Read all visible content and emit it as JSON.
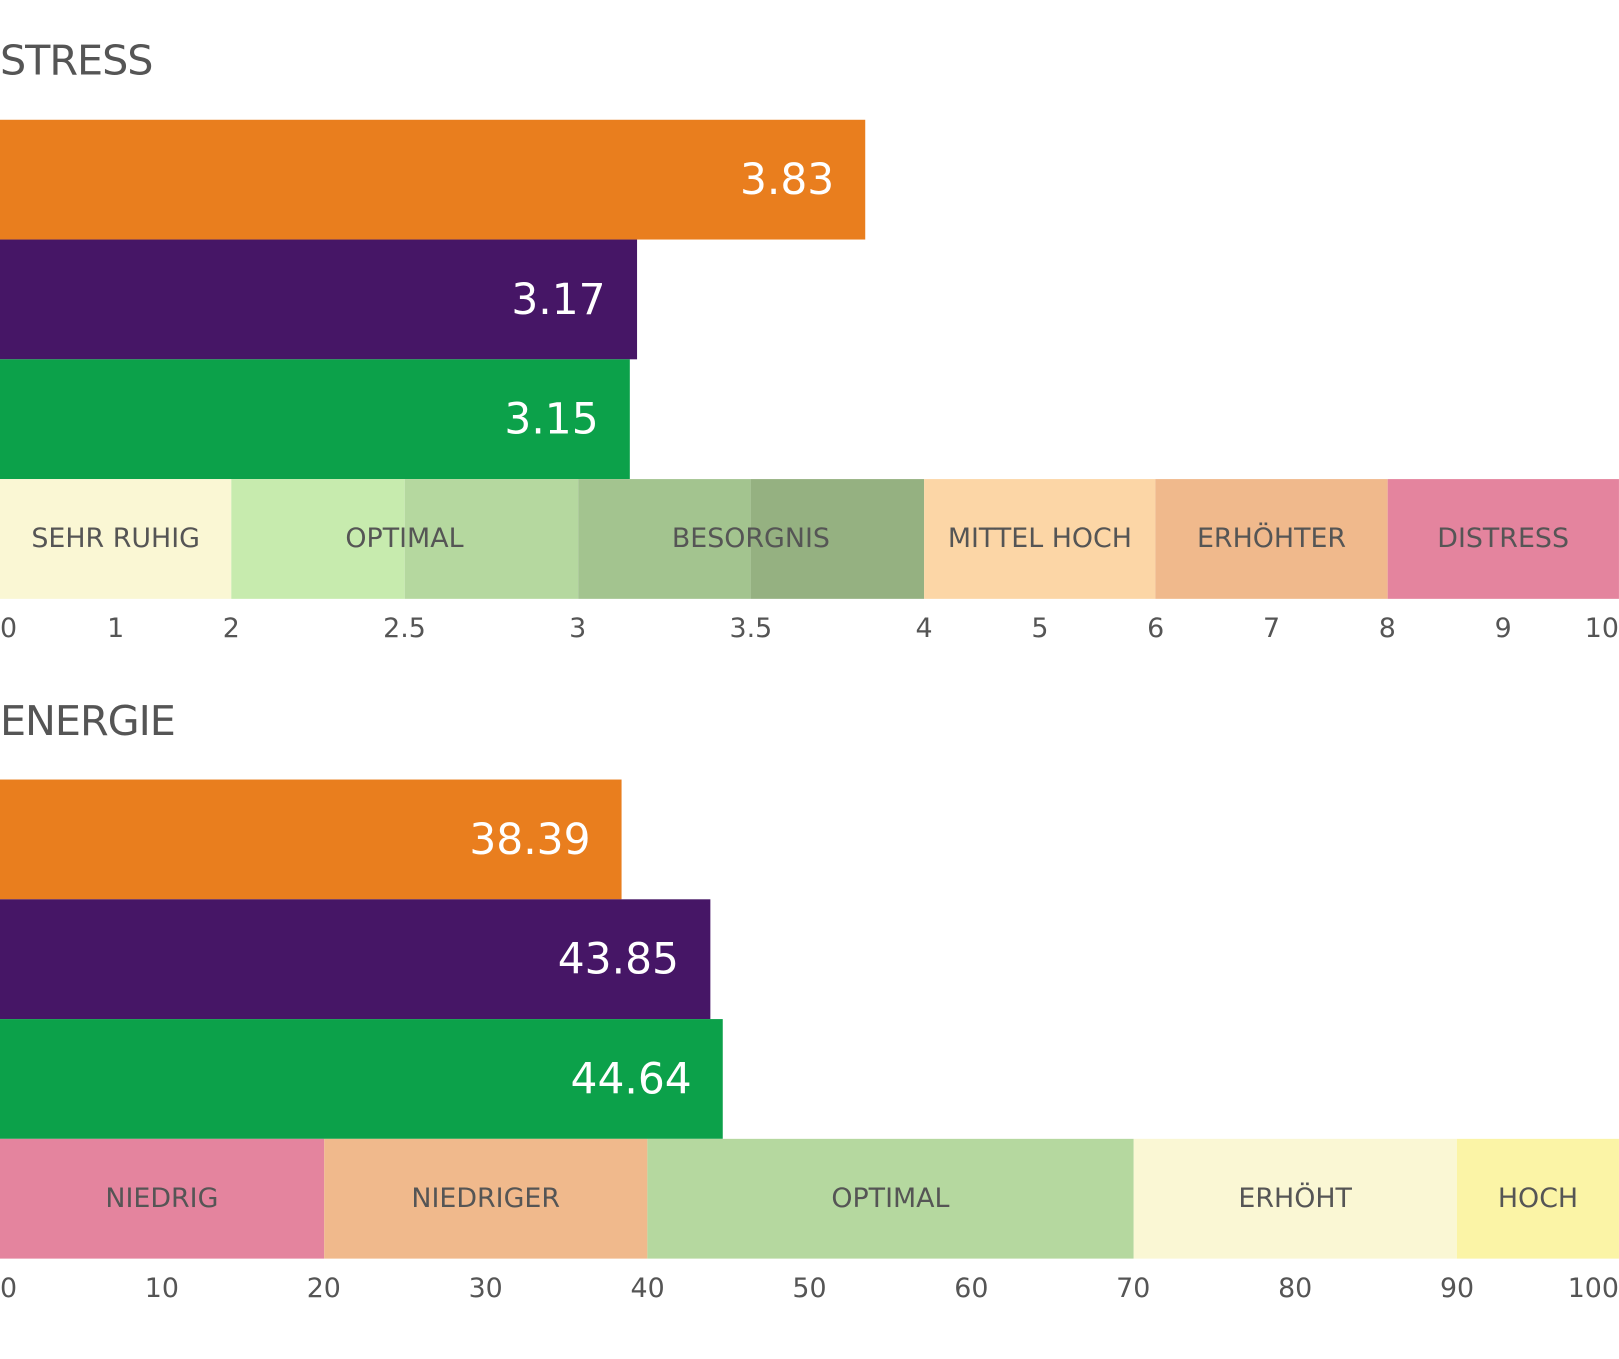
{
  "chart_data": [
    {
      "type": "bar",
      "orientation": "horizontal",
      "title": "STRESS",
      "values": [
        3.83,
        3.17,
        3.15
      ],
      "colors": [
        "#e97e1e",
        "#461666",
        "#0ca14a"
      ],
      "scale": "piecewise",
      "ticks": [
        "0",
        "1",
        "2",
        "2.5",
        "3",
        "3.5",
        "4",
        "5",
        "6",
        "7",
        "8",
        "9",
        "10"
      ],
      "xlim": [
        0,
        10
      ],
      "bands": [
        {
          "label": "SEHR RUHIG",
          "from": 0,
          "to": 2,
          "segments": [
            {
              "from": 0,
              "to": 2,
              "color": "#faf7d4"
            }
          ]
        },
        {
          "label": "OPTIMAL",
          "from": 2,
          "to": 3,
          "segments": [
            {
              "from": 2,
              "to": 2.5,
              "color": "#c7ebae"
            },
            {
              "from": 2.5,
              "to": 3,
              "color": "#b5d89f"
            }
          ]
        },
        {
          "label": "BESORGNIS",
          "from": 3,
          "to": 4,
          "segments": [
            {
              "from": 3,
              "to": 3.5,
              "color": "#a3c48f"
            },
            {
              "from": 3.5,
              "to": 4,
              "color": "#95b181"
            }
          ]
        },
        {
          "label": "MITTEL HOCH",
          "from": 4,
          "to": 6,
          "segments": [
            {
              "from": 4,
              "to": 6,
              "color": "#fcd6a6"
            }
          ]
        },
        {
          "label": "ERHÖHTER",
          "from": 6,
          "to": 8,
          "segments": [
            {
              "from": 6,
              "to": 8,
              "color": "#f0b98c"
            }
          ]
        },
        {
          "label": "DISTRESS",
          "from": 8,
          "to": 10,
          "segments": [
            {
              "from": 8,
              "to": 10,
              "color": "#e4849e"
            }
          ]
        }
      ]
    },
    {
      "type": "bar",
      "orientation": "horizontal",
      "title": "ENERGIE",
      "values": [
        38.39,
        43.85,
        44.64
      ],
      "colors": [
        "#e97e1e",
        "#461666",
        "#0ca14a"
      ],
      "scale": "linear",
      "ticks": [
        "0",
        "10",
        "20",
        "30",
        "40",
        "50",
        "60",
        "70",
        "80",
        "90",
        "100"
      ],
      "xlim": [
        0,
        100
      ],
      "bands": [
        {
          "label": "NIEDRIG",
          "from": 0,
          "to": 20,
          "segments": [
            {
              "from": 0,
              "to": 20,
              "color": "#e4849e"
            }
          ]
        },
        {
          "label": "NIEDRIGER",
          "from": 20,
          "to": 40,
          "segments": [
            {
              "from": 20,
              "to": 40,
              "color": "#f0b98c"
            }
          ]
        },
        {
          "label": "OPTIMAL",
          "from": 40,
          "to": 70,
          "segments": [
            {
              "from": 40,
              "to": 70,
              "color": "#b5d89f"
            }
          ]
        },
        {
          "label": "ERHÖHT",
          "from": 70,
          "to": 90,
          "segments": [
            {
              "from": 70,
              "to": 90,
              "color": "#faf7d4"
            }
          ]
        },
        {
          "label": "HOCH",
          "from": 90,
          "to": 100,
          "segments": [
            {
              "from": 90,
              "to": 100,
              "color": "#fbf4a6"
            }
          ]
        }
      ]
    }
  ]
}
